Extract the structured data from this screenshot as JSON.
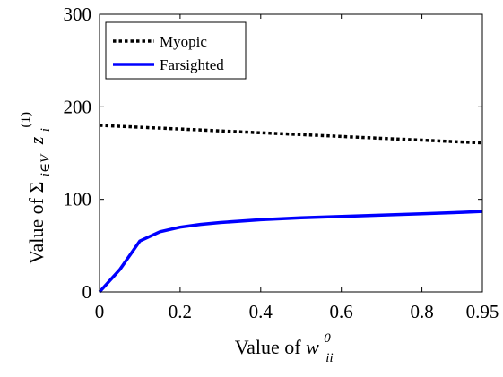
{
  "chart_data": {
    "type": "line",
    "x_tick_labels": [
      "0",
      "0.2",
      "0.4",
      "0.6",
      "0.8",
      "0.95"
    ],
    "y_tick_labels": [
      "0",
      "100",
      "200",
      "300"
    ],
    "xlim": [
      0,
      0.95
    ],
    "ylim": [
      0,
      300
    ],
    "xlabel": {
      "prefix": "Value of ",
      "var": "w",
      "sup": "0",
      "sub": "ii"
    },
    "ylabel": {
      "prefix": "Value of ",
      "sigma": "Σ",
      "sigma_sub": "i∈V",
      "var": "z",
      "sub": "i",
      "sup": "(1)"
    },
    "legend_position": "top-left",
    "grid": false,
    "series": [
      {
        "name": "Myopic",
        "style": "dotted",
        "color": "#000000",
        "x": [
          0,
          0.1,
          0.2,
          0.3,
          0.4,
          0.5,
          0.6,
          0.7,
          0.8,
          0.9,
          0.95
        ],
        "y": [
          180,
          178,
          176,
          174,
          172,
          170,
          168,
          166,
          164,
          162,
          161
        ]
      },
      {
        "name": "Farsighted",
        "style": "solid",
        "color": "#0000ff",
        "x": [
          0,
          0.05,
          0.1,
          0.15,
          0.2,
          0.25,
          0.3,
          0.4,
          0.5,
          0.6,
          0.7,
          0.8,
          0.9,
          0.95
        ],
        "y": [
          0,
          24,
          55,
          65,
          70,
          73,
          75,
          78,
          80,
          81.5,
          83,
          84.5,
          86,
          87
        ]
      }
    ]
  }
}
